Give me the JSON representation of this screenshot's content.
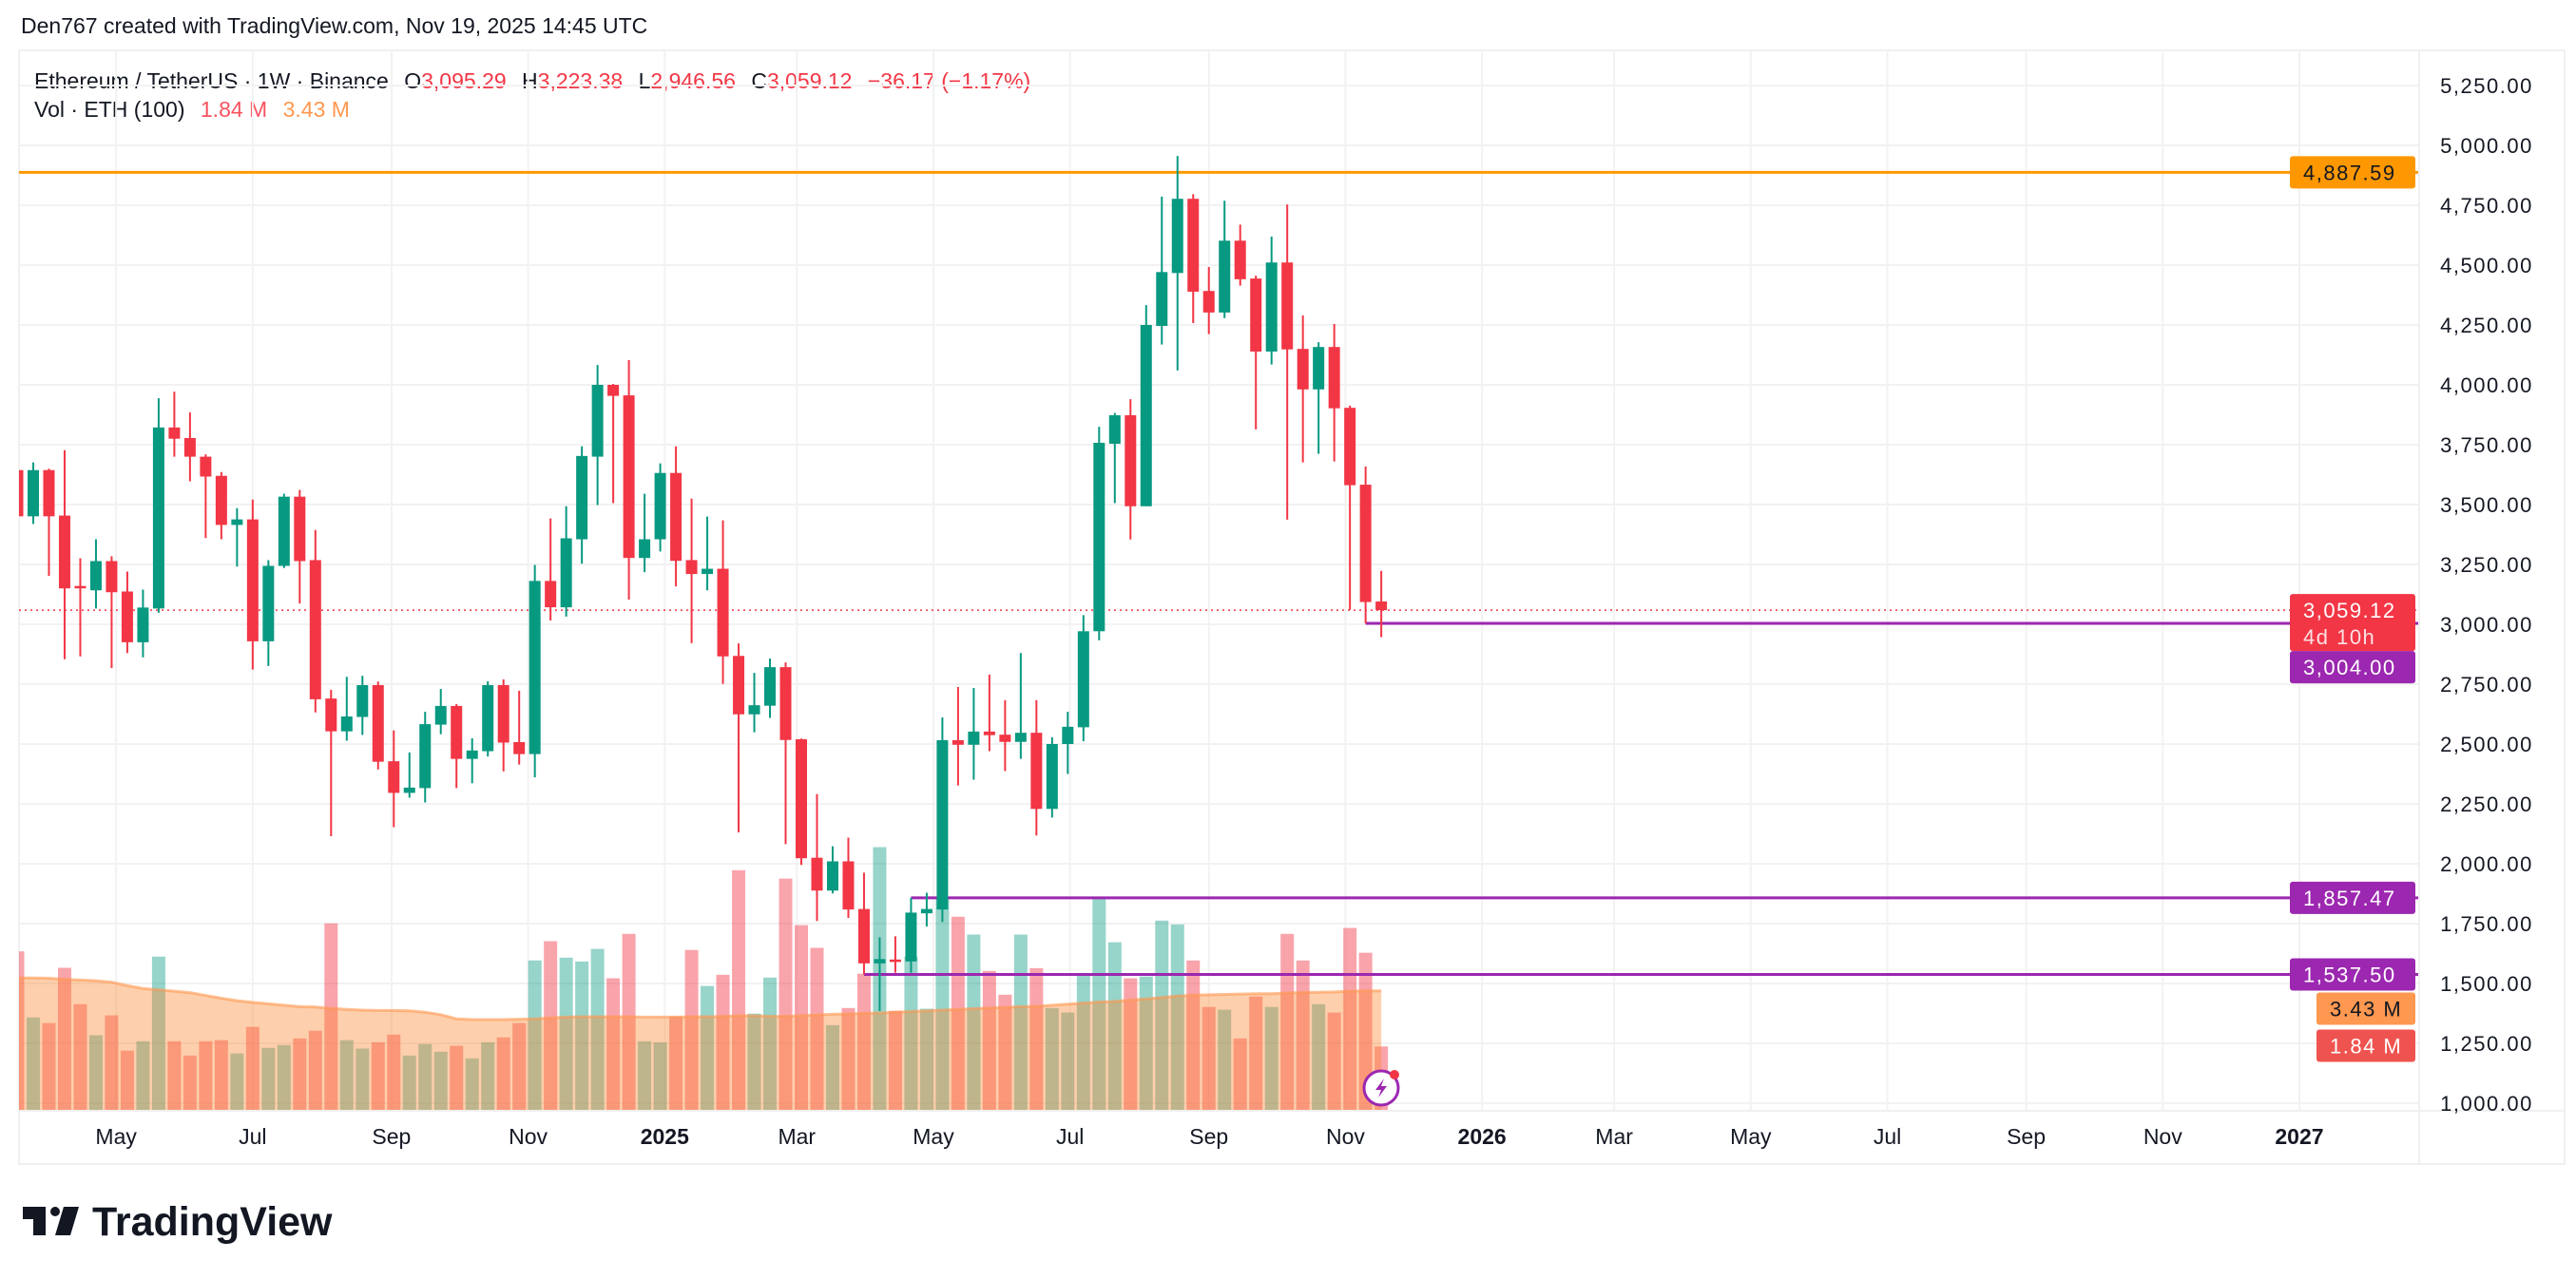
{
  "header": {
    "attribution": "Den767 created with TradingView.com, Nov 19, 2025 14:45 UTC"
  },
  "legend": {
    "symbol": "Ethereum / TetherUS · 1W · Binance",
    "open_label": "O",
    "open": "3,095.29",
    "high_label": "H",
    "high": "3,223.38",
    "low_label": "L",
    "low": "2,946.56",
    "close_label": "C",
    "close": "3,059.12",
    "change": "−36.17 (−1.17%)",
    "volume_title": "Vol · ETH (100)",
    "volume_value": "1.84 M",
    "volume_ma_value": "3.43 M"
  },
  "logo": {
    "text": "TradingView"
  },
  "colors": {
    "up": "#089981",
    "down": "#f23645",
    "orange_line": "#ff9800",
    "purple_line": "#9c27b0",
    "vol_ma": "#ff9850",
    "alert_icon": "#9c27b0"
  },
  "icons": {
    "alert": "lightning-alert-icon"
  },
  "chart_data": {
    "type": "candlestick",
    "interval": "1W",
    "ylim": [
      1000,
      5250
    ],
    "y_ticks": [
      "5,250.00",
      "5,000.00",
      "4,750.00",
      "4,500.00",
      "4,250.00",
      "4,000.00",
      "3,750.00",
      "3,500.00",
      "3,250.00",
      "3,000.00",
      "2,750.00",
      "2,500.00",
      "2,250.00",
      "2,000.00",
      "1,750.00",
      "1,500.00",
      "1,250.00",
      "1,000.00"
    ],
    "y_tick_values": [
      5250,
      5000,
      4750,
      4500,
      4250,
      4000,
      3750,
      3500,
      3250,
      3000,
      2750,
      2500,
      2250,
      2000,
      1750,
      1500,
      1250,
      1000
    ],
    "x_ticks": [
      {
        "label": "May",
        "date": "2024-05-01"
      },
      {
        "label": "Jul",
        "date": "2024-07-01"
      },
      {
        "label": "Sep",
        "date": "2024-09-01"
      },
      {
        "label": "Nov",
        "date": "2024-11-01"
      },
      {
        "label": "2025",
        "date": "2025-01-01",
        "year": true
      },
      {
        "label": "Mar",
        "date": "2025-03-01"
      },
      {
        "label": "May",
        "date": "2025-05-01"
      },
      {
        "label": "Jul",
        "date": "2025-07-01"
      },
      {
        "label": "Sep",
        "date": "2025-09-01"
      },
      {
        "label": "Nov",
        "date": "2025-11-01"
      },
      {
        "label": "2026",
        "date": "2026-01-01",
        "year": true
      },
      {
        "label": "Mar",
        "date": "2026-03-01"
      },
      {
        "label": "May",
        "date": "2026-05-01"
      },
      {
        "label": "Jul",
        "date": "2026-07-01"
      },
      {
        "label": "Sep",
        "date": "2026-09-01"
      },
      {
        "label": "Nov",
        "date": "2026-11-01"
      },
      {
        "label": "2027",
        "date": "2027-01-01",
        "year": true
      }
    ],
    "columns": [
      "date",
      "open",
      "high",
      "low",
      "close",
      "volume_M",
      "volume_ma_M"
    ],
    "candles": [
      [
        "2024-03-18",
        3644,
        3730,
        3420,
        3451,
        4.56,
        3.8
      ],
      [
        "2024-03-25",
        3451,
        3676,
        3419,
        3644,
        2.67,
        3.8
      ],
      [
        "2024-04-01",
        3644,
        3650,
        3202,
        3451,
        2.51,
        3.79
      ],
      [
        "2024-04-08",
        3454,
        3727,
        2854,
        3150,
        4.09,
        3.76
      ],
      [
        "2024-04-15",
        3160,
        3276,
        2866,
        3150,
        3.05,
        3.74
      ],
      [
        "2024-04-22",
        3142,
        3355,
        3066,
        3264,
        2.16,
        3.72
      ],
      [
        "2024-04-29",
        3264,
        3284,
        2817,
        3134,
        2.73,
        3.68
      ],
      [
        "2024-05-06",
        3137,
        3220,
        2880,
        2925,
        1.72,
        3.58
      ],
      [
        "2024-05-13",
        2925,
        3145,
        2862,
        3070,
        1.99,
        3.5
      ],
      [
        "2024-05-20",
        3066,
        3944,
        3048,
        3822,
        4.41,
        3.46
      ],
      [
        "2024-05-27",
        3822,
        3971,
        3700,
        3775,
        1.99,
        3.42
      ],
      [
        "2024-06-03",
        3778,
        3885,
        3597,
        3700,
        1.58,
        3.38
      ],
      [
        "2024-06-10",
        3700,
        3710,
        3360,
        3617,
        1.99,
        3.3
      ],
      [
        "2024-06-17",
        3620,
        3636,
        3355,
        3415,
        2.02,
        3.22
      ],
      [
        "2024-06-24",
        3415,
        3485,
        3241,
        3438,
        1.64,
        3.15
      ],
      [
        "2024-07-01",
        3438,
        3521,
        2811,
        2929,
        2.4,
        3.1
      ],
      [
        "2024-07-08",
        2929,
        3268,
        2826,
        3244,
        1.8,
        3.06
      ],
      [
        "2024-07-15",
        3244,
        3545,
        3235,
        3533,
        1.88,
        3.02
      ],
      [
        "2024-07-22",
        3533,
        3561,
        3087,
        3264,
        2.07,
        2.98
      ],
      [
        "2024-07-29",
        3268,
        3394,
        2632,
        2687,
        2.29,
        2.97
      ],
      [
        "2024-08-05",
        2690,
        2726,
        2115,
        2553,
        5.36,
        2.93
      ],
      [
        "2024-08-12",
        2553,
        2781,
        2514,
        2615,
        2.02,
        2.9
      ],
      [
        "2024-08-19",
        2613,
        2785,
        2538,
        2746,
        1.78,
        2.88
      ],
      [
        "2024-08-26",
        2746,
        2761,
        2394,
        2426,
        1.96,
        2.87
      ],
      [
        "2024-09-02",
        2428,
        2557,
        2153,
        2296,
        2.18,
        2.87
      ],
      [
        "2024-09-09",
        2296,
        2465,
        2276,
        2318,
        1.58,
        2.86
      ],
      [
        "2024-09-16",
        2316,
        2635,
        2256,
        2583,
        1.91,
        2.82
      ],
      [
        "2024-09-23",
        2581,
        2730,
        2541,
        2659,
        1.69,
        2.75
      ],
      [
        "2024-09-30",
        2659,
        2667,
        2316,
        2438,
        1.86,
        2.63
      ],
      [
        "2024-10-07",
        2438,
        2524,
        2336,
        2473,
        1.5,
        2.61
      ],
      [
        "2024-10-14",
        2470,
        2762,
        2448,
        2746,
        1.96,
        2.61
      ],
      [
        "2024-10-21",
        2746,
        2770,
        2386,
        2506,
        2.1,
        2.61
      ],
      [
        "2024-10-28",
        2508,
        2722,
        2414,
        2458,
        2.51,
        2.62
      ],
      [
        "2024-11-04",
        2458,
        3248,
        2361,
        3181,
        4.3,
        2.63
      ],
      [
        "2024-11-11",
        3181,
        3442,
        3016,
        3071,
        4.85,
        2.66
      ],
      [
        "2024-11-18",
        3071,
        3493,
        3032,
        3359,
        4.38,
        2.68
      ],
      [
        "2024-11-25",
        3355,
        3743,
        3253,
        3703,
        4.27,
        2.69
      ],
      [
        "2024-12-02",
        3700,
        4083,
        3498,
        4000,
        4.63,
        2.69
      ],
      [
        "2024-12-09",
        4000,
        4004,
        3506,
        3954,
        3.79,
        2.69
      ],
      [
        "2024-12-16",
        3956,
        4103,
        3103,
        3277,
        5.06,
        2.69
      ],
      [
        "2024-12-23",
        3277,
        3545,
        3218,
        3355,
        1.99,
        2.68
      ],
      [
        "2024-12-30",
        3355,
        3672,
        3304,
        3632,
        1.96,
        2.68
      ],
      [
        "2025-01-06",
        3632,
        3743,
        3158,
        3265,
        2.7,
        2.68
      ],
      [
        "2025-01-13",
        3268,
        3525,
        2921,
        3210,
        4.6,
        2.69
      ],
      [
        "2025-01-20",
        3210,
        3450,
        3142,
        3232,
        3.57,
        2.69
      ],
      [
        "2025-01-27",
        3232,
        3434,
        2751,
        2866,
        3.89,
        2.7
      ],
      [
        "2025-02-03",
        2868,
        2920,
        2131,
        2624,
        6.88,
        2.72
      ],
      [
        "2025-02-10",
        2624,
        2797,
        2549,
        2662,
        2.78,
        2.72
      ],
      [
        "2025-02-17",
        2660,
        2857,
        2609,
        2821,
        3.81,
        2.7
      ],
      [
        "2025-02-24",
        2821,
        2841,
        2082,
        2517,
        6.64,
        2.7
      ],
      [
        "2025-03-03",
        2520,
        2523,
        1995,
        2023,
        5.31,
        2.72
      ],
      [
        "2025-03-10",
        2025,
        2291,
        1761,
        1888,
        4.66,
        2.74
      ],
      [
        "2025-03-17",
        1888,
        2073,
        1876,
        2010,
        2.45,
        2.76
      ],
      [
        "2025-03-24",
        2010,
        2109,
        1774,
        1809,
        2.94,
        2.77
      ],
      [
        "2025-03-31",
        1811,
        1963,
        1537.5,
        1584,
        3.92,
        2.79
      ],
      [
        "2025-04-07",
        1584,
        1693,
        1385,
        1602,
        7.54,
        2.8
      ],
      [
        "2025-04-14",
        1600,
        1697,
        1545,
        1590,
        2.86,
        2.82
      ],
      [
        "2025-04-21",
        1592,
        1857.47,
        1545,
        1796,
        4.41,
        2.84
      ],
      [
        "2025-04-28",
        1793,
        1879,
        1738,
        1811,
        2.92,
        2.86
      ],
      [
        "2025-05-05",
        1809,
        2611,
        1757,
        2516,
        6.1,
        2.88
      ],
      [
        "2025-05-12",
        2516,
        2738,
        2327,
        2497,
        5.55,
        2.9
      ],
      [
        "2025-05-19",
        2497,
        2734,
        2351,
        2552,
        5.04,
        2.92
      ],
      [
        "2025-05-26",
        2552,
        2790,
        2470,
        2537,
        4.0,
        2.94
      ],
      [
        "2025-06-02",
        2539,
        2683,
        2387,
        2509,
        3.32,
        2.96
      ],
      [
        "2025-06-09",
        2509,
        2880,
        2438,
        2547,
        5.04,
        2.98
      ],
      [
        "2025-06-16",
        2547,
        2683,
        2118,
        2229,
        4.08,
        2.99
      ],
      [
        "2025-06-23",
        2229,
        2528,
        2193,
        2500,
        2.94,
        3.02
      ],
      [
        "2025-06-30",
        2500,
        2635,
        2375,
        2572,
        2.81,
        3.05
      ],
      [
        "2025-07-07",
        2570,
        3038,
        2512,
        2971,
        3.89,
        3.08
      ],
      [
        "2025-07-14",
        2971,
        3825,
        2933,
        3758,
        6.12,
        3.11
      ],
      [
        "2025-07-21",
        3754,
        3883,
        3506,
        3873,
        4.82,
        3.13
      ],
      [
        "2025-07-28",
        3873,
        3940,
        3354,
        3493,
        3.79,
        3.17
      ],
      [
        "2025-08-04",
        3493,
        4333,
        3493,
        4250,
        3.84,
        3.2
      ],
      [
        "2025-08-11",
        4246,
        4786,
        4168,
        4471,
        5.44,
        3.24
      ],
      [
        "2025-08-18",
        4467,
        4956,
        4060,
        4777,
        5.33,
        3.28
      ],
      [
        "2025-08-25",
        4777,
        4796,
        4258,
        4389,
        4.3,
        3.31
      ],
      [
        "2025-09-01",
        4392,
        4492,
        4212,
        4302,
        2.97,
        3.32
      ],
      [
        "2025-09-08",
        4302,
        4769,
        4279,
        4602,
        2.89,
        3.33
      ],
      [
        "2025-09-15",
        4602,
        4669,
        4414,
        4441,
        2.07,
        3.34
      ],
      [
        "2025-09-22",
        4444,
        4456,
        3814,
        4139,
        3.27,
        3.35
      ],
      [
        "2025-09-29",
        4139,
        4619,
        4085,
        4511,
        2.97,
        3.35
      ],
      [
        "2025-10-06",
        4511,
        4753,
        3437,
        4148,
        5.06,
        3.37
      ],
      [
        "2025-10-13",
        4150,
        4290,
        3676,
        3981,
        4.3,
        3.38
      ],
      [
        "2025-10-20",
        3981,
        4178,
        3712,
        4158,
        3.05,
        3.39
      ],
      [
        "2025-10-27",
        4158,
        4254,
        3680,
        3902,
        2.81,
        3.4
      ],
      [
        "2025-11-03",
        3904,
        3913,
        3060,
        3581,
        5.23,
        3.42
      ],
      [
        "2025-11-10",
        3583,
        3659,
        3004,
        3093,
        4.52,
        3.43
      ],
      [
        "2025-11-17",
        3095.29,
        3223.38,
        2946.56,
        3059.12,
        1.84,
        3.43
      ]
    ],
    "current_price": {
      "value": 3059.12,
      "label": "3,059.12",
      "countdown": "4d 10h"
    },
    "horizontal_lines": [
      {
        "value": 4887.59,
        "label": "4,887.59",
        "color": "#ff9800",
        "from_date": null
      },
      {
        "value": 3004.0,
        "label": "3,004.00",
        "color": "#9c27b0",
        "from_date": "2025-11-10"
      },
      {
        "value": 1857.47,
        "label": "1,857.47",
        "color": "#9c27b0",
        "from_date": "2025-04-21"
      },
      {
        "value": 1537.5,
        "label": "1,537.50",
        "color": "#9c27b0",
        "from_date": "2025-03-31"
      }
    ],
    "volume_tags": [
      {
        "label": "3.43 M",
        "value": 3.43,
        "color": "#ff9850",
        "text_color": "#131722"
      },
      {
        "label": "1.84 M",
        "value": 1.84,
        "color": "#ef5350",
        "text_color": "#ffffff"
      }
    ],
    "grid": true
  }
}
